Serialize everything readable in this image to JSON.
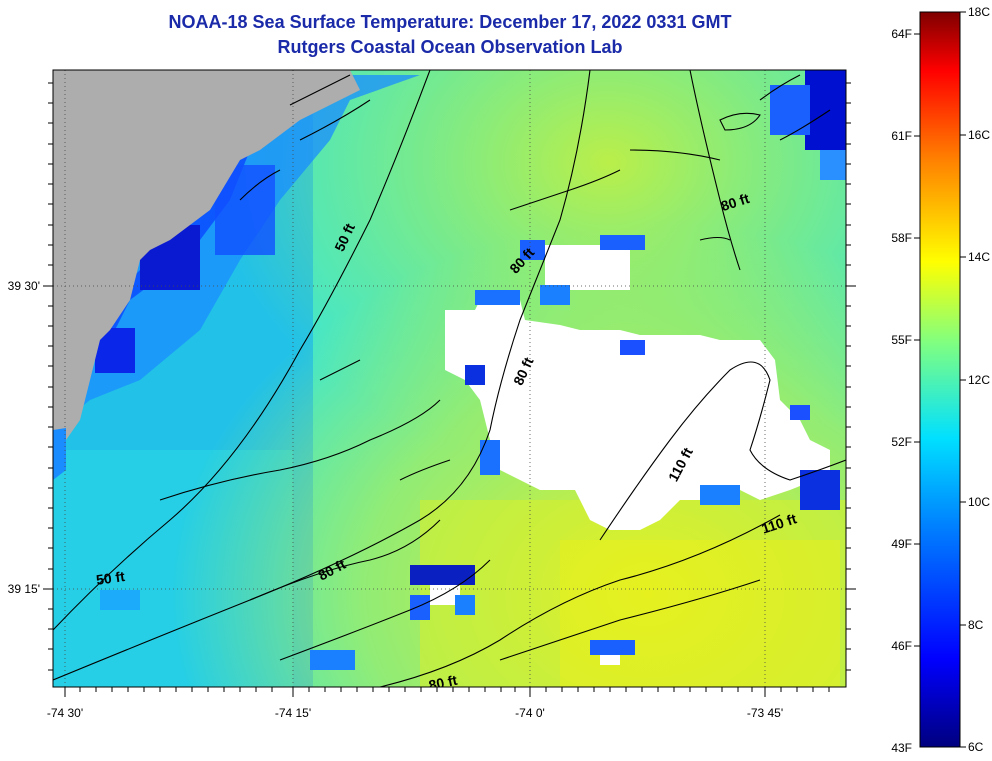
{
  "title": {
    "line1": "NOAA-18 Sea Surface Temperature:  December 17, 2022 0331 GMT",
    "line2": "Rutgers Coastal Ocean Observation Lab"
  },
  "axes": {
    "x_ticks": [
      "-74 30'",
      "-74 15'",
      "-74 0'",
      "-73 45'"
    ],
    "y_ticks": [
      "39 30'",
      "39 15'"
    ]
  },
  "contour_labels": [
    "50 ft",
    "50 ft",
    "80 ft",
    "80 ft",
    "80 ft",
    "80 ft",
    "80 ft",
    "110 ft",
    "110 ft"
  ],
  "colorbar": {
    "fahrenheit": [
      "64F",
      "61F",
      "58F",
      "55F",
      "52F",
      "49F",
      "46F",
      "43F"
    ],
    "celsius": [
      "18C",
      "16C",
      "14C",
      "12C",
      "10C",
      "8C",
      "6C"
    ]
  },
  "colors": {
    "land": "#adadad",
    "cloud": "#ffffff",
    "title": "#1a2aa8"
  }
}
